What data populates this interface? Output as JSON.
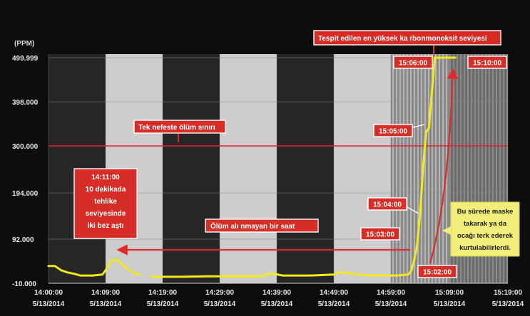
{
  "chart_data": {
    "type": "line",
    "ylabel": "(PPM)",
    "y_ticks": [
      "499.999",
      "398.000",
      "300.000",
      "194.000",
      "92.000",
      "-10.000"
    ],
    "y_tick_values": [
      499.999,
      398,
      300,
      194,
      92,
      -10
    ],
    "ylim": [
      -10,
      499.999
    ],
    "x_ticks": [
      {
        "time": "14:00:00",
        "date": "5/13/2014"
      },
      {
        "time": "14:09:00",
        "date": "5/13/2014"
      },
      {
        "time": "14:19:00",
        "date": "5/13/2014"
      },
      {
        "time": "14:29:00",
        "date": "5/13/2014"
      },
      {
        "time": "14:39:00",
        "date": "5/13/2014"
      },
      {
        "time": "14:49:00",
        "date": "5/13/2014"
      },
      {
        "time": "14:59:00",
        "date": "5/13/2014"
      },
      {
        "time": "15:09:00",
        "date": "5/13/2014"
      },
      {
        "time": "15:19:00",
        "date": "5/13/2014"
      }
    ],
    "xlim": [
      "14:00:00",
      "15:19:00"
    ],
    "threshold": {
      "value": 300,
      "color": "#e32626"
    },
    "series": [
      {
        "color": "#f2ea1c",
        "segments": [
          [
            [
              "14:00:00",
              30
            ],
            [
              "14:01:00",
              30
            ],
            [
              "14:02:00",
              20
            ],
            [
              "14:03:00",
              15
            ],
            [
              "14:04:00",
              12
            ],
            [
              "14:05:00",
              8
            ],
            [
              "14:07:00",
              8
            ],
            [
              "14:08:30",
              10
            ],
            [
              "14:09:00",
              20
            ],
            [
              "14:10:00",
              42
            ],
            [
              "14:11:00",
              45
            ],
            [
              "14:12:00",
              32
            ],
            [
              "14:13:00",
              22
            ],
            [
              "14:14:00",
              14
            ],
            [
              "14:15:00",
              10
            ]
          ],
          [
            [
              "14:17:00",
              5
            ],
            [
              "14:22:00",
              5
            ],
            [
              "14:27:00",
              6
            ],
            [
              "14:32:00",
              6
            ],
            [
              "14:36:30",
              6
            ],
            [
              "14:37:30",
              12
            ],
            [
              "14:38:30",
              12
            ],
            [
              "14:40:00",
              8
            ],
            [
              "14:45:00",
              8
            ],
            [
              "14:49:00",
              10
            ],
            [
              "14:50:00",
              16
            ],
            [
              "14:51:00",
              14
            ],
            [
              "14:53:00",
              10
            ],
            [
              "14:56:00",
              8
            ],
            [
              "14:59:00",
              8
            ]
          ],
          [
            [
              "14:59:00",
              8
            ],
            [
              "15:00:00",
              8
            ],
            [
              "15:02:00",
              10
            ],
            [
              "15:02:30",
              20
            ],
            [
              "15:03:00",
              45
            ],
            [
              "15:03:30",
              80
            ],
            [
              "15:04:00",
              150
            ],
            [
              "15:04:30",
              250
            ],
            [
              "15:05:00",
              330
            ],
            [
              "15:05:30",
              340
            ],
            [
              "15:06:00",
              420
            ],
            [
              "15:06:30",
              499.999
            ],
            [
              "15:10:00",
              499.999
            ]
          ]
        ]
      }
    ],
    "annotations": [
      {
        "id": "max",
        "text_parts": [
          "Tespit",
          "edilen en yüksek",
          "ka",
          "rbonmonoksit",
          "seviyesi"
        ]
      },
      {
        "id": "limit",
        "text_parts": [
          "Tek",
          "nefeste",
          "ölüm",
          "sınırı"
        ]
      },
      {
        "id": "danger",
        "lines": [
          [
            "14:11:00"
          ],
          [
            "10 dakikada"
          ],
          [
            "tehlike"
          ],
          [
            "seviyesinde"
          ],
          [
            "iki bez aştı"
          ]
        ]
      },
      {
        "id": "unnoticed",
        "text_parts": [
          "Ölüm",
          "alı",
          "nmayan bir saat"
        ]
      },
      {
        "id": "note",
        "lines": [
          "Bu sürede maske",
          "takarak ya da",
          "ocağı terk ederek",
          "kurtulabilirlerdi."
        ]
      },
      {
        "id": "t1506",
        "text": "15:06:00"
      },
      {
        "id": "t1510",
        "text": "15:10:00"
      },
      {
        "id": "t1505",
        "text": "15:05:00"
      },
      {
        "id": "t1504",
        "text": "15:04:00"
      },
      {
        "id": "t1503",
        "text": "15:03:00"
      },
      {
        "id": "t1502",
        "text": "15:02:00"
      }
    ],
    "colors": {
      "background": "#0d0d0d",
      "band_light": "#c9c9c9",
      "band_dark": "#262626",
      "band_hatched": "#8a8a8a",
      "line": "#f2ea1c",
      "threshold": "#e32626",
      "callout": "#d62d26",
      "callout_border": "#ffffff",
      "arrow": "#e02a2a",
      "note_bg": "#f3ee7a"
    }
  }
}
